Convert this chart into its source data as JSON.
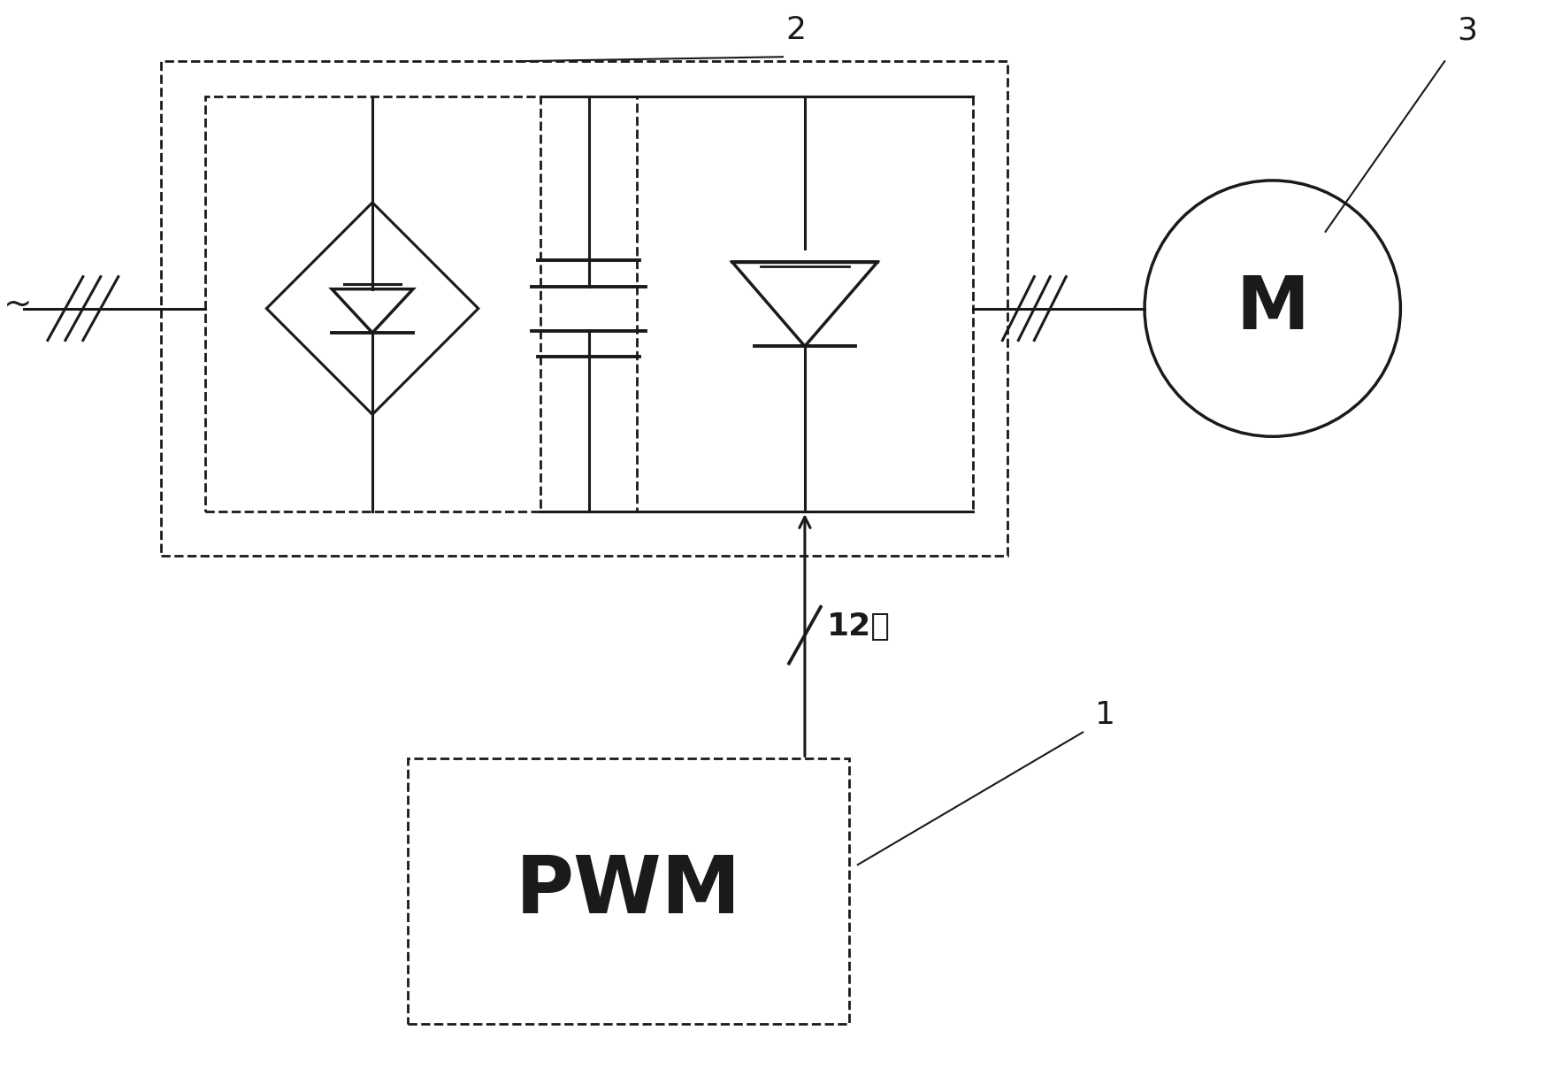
{
  "bg_color": "#ffffff",
  "line_color": "#1a1a1a",
  "fig_width": 17.66,
  "fig_height": 12.08,
  "label_2": "2",
  "label_3": "3",
  "label_1": "1",
  "pwm_text": "PWM",
  "motor_text": "M",
  "channel_text": "12路",
  "ac_symbol": "~"
}
